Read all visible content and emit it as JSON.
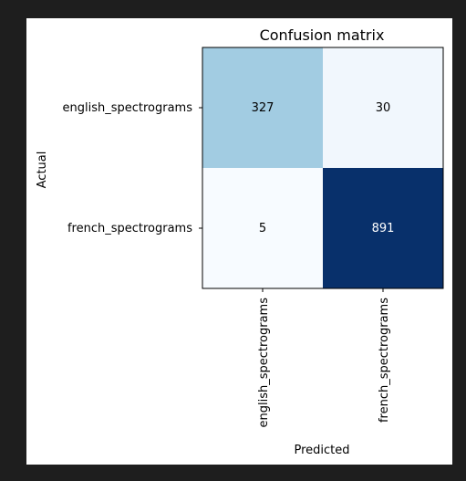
{
  "chart_data": {
    "type": "heatmap",
    "title": "Confusion matrix",
    "xlabel": "Predicted",
    "ylabel": "Actual",
    "x_categories": [
      "english_spectrograms",
      "french_spectrograms"
    ],
    "y_categories": [
      "english_spectrograms",
      "french_spectrograms"
    ],
    "values": [
      [
        327,
        30
      ],
      [
        5,
        891
      ]
    ],
    "colormap": "Blues",
    "color_low": "#f7fbff",
    "color_high": "#08306b",
    "text_dark": "#000000",
    "text_light": "#ffffff",
    "grid": false,
    "legend": "none"
  }
}
